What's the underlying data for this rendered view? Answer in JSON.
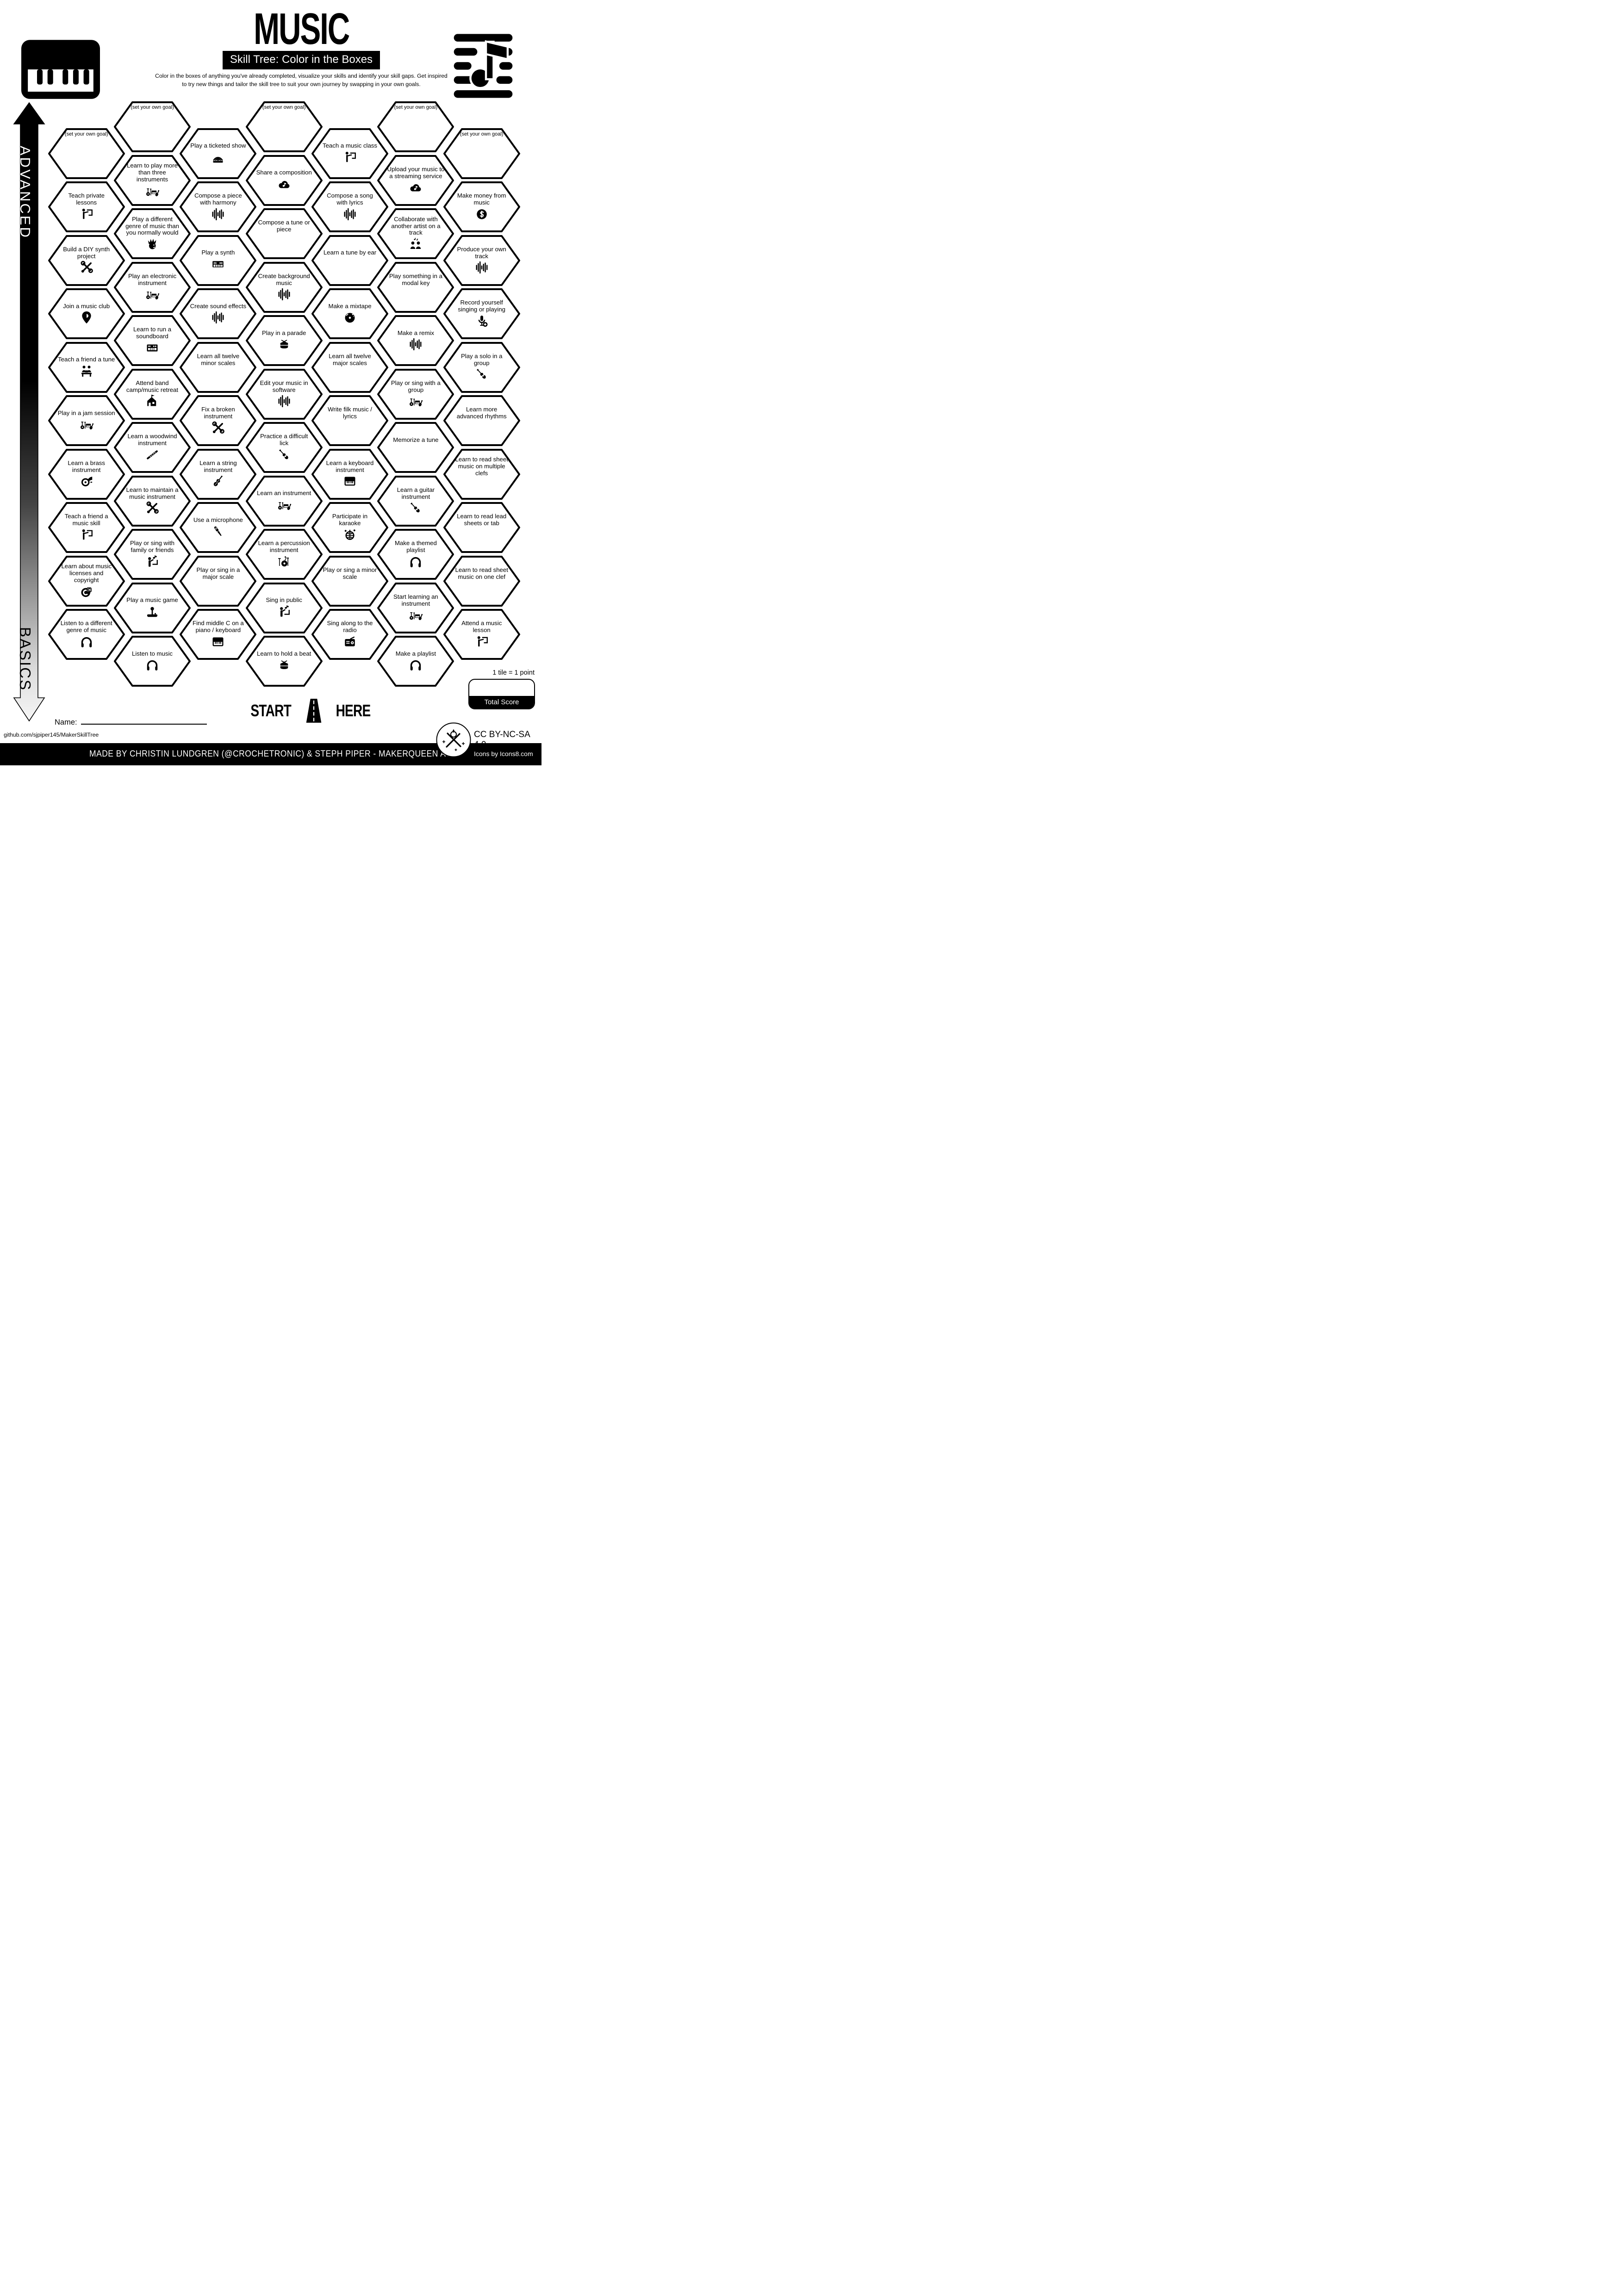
{
  "header": {
    "title": "MUSIC",
    "subtitle": "Skill Tree: Color in the Boxes",
    "description_line1": "Color in the boxes of anything you've already completed, visualize your skills and identify your skill gaps.  Get inspired",
    "description_line2": "to try new things and tailor the skill tree to suit your own journey by swapping in your own goals.",
    "left_icon": "piano-keyboard-icon",
    "right_icon": "sheet-music-icon"
  },
  "axis": {
    "top_label": "ADVANCED",
    "bottom_label": "BASICS"
  },
  "colors": {
    "ink": "#000000",
    "paper": "#ffffff"
  },
  "hexes": [
    {
      "col": 1,
      "row": 0,
      "label": "(set your own goal)",
      "icon": null
    },
    {
      "col": 1,
      "row": 1,
      "label": "Teach private lessons",
      "icon": "teacher"
    },
    {
      "col": 1,
      "row": 2,
      "label": "Build a DIY synth project",
      "icon": "tools"
    },
    {
      "col": 1,
      "row": 3,
      "label": "Join a music club",
      "icon": "pin"
    },
    {
      "col": 1,
      "row": 4,
      "label": "Teach a friend a tune",
      "icon": "duo"
    },
    {
      "col": 1,
      "row": 5,
      "label": "Play in a jam session",
      "icon": "band"
    },
    {
      "col": 1,
      "row": 6,
      "label": "Learn a brass instrument",
      "icon": "brass"
    },
    {
      "col": 1,
      "row": 7,
      "label": "Teach a friend a music skill",
      "icon": "teacher"
    },
    {
      "col": 1,
      "row": 8,
      "label": "Learn about music licenses and copyright",
      "icon": "copyright"
    },
    {
      "col": 1,
      "row": 9,
      "label": "Listen to a different genre of music",
      "icon": "headphones"
    },
    {
      "col": 2,
      "row": 0,
      "label": "(set your own goal)",
      "icon": null
    },
    {
      "col": 2,
      "row": 1,
      "label": "Learn to play more than three instruments",
      "icon": "band"
    },
    {
      "col": 2,
      "row": 2,
      "label": "Play a different genre of music than you normally would",
      "icon": "punk"
    },
    {
      "col": 2,
      "row": 3,
      "label": "Play an electronic instrument",
      "icon": "band"
    },
    {
      "col": 2,
      "row": 4,
      "label": "Learn to run a soundboard",
      "icon": "soundboard"
    },
    {
      "col": 2,
      "row": 5,
      "label": "Attend band camp/music retreat",
      "icon": "house"
    },
    {
      "col": 2,
      "row": 6,
      "label": "Learn a woodwind instrument",
      "icon": "flute"
    },
    {
      "col": 2,
      "row": 7,
      "label": "Learn to maintain a music instrument",
      "icon": "tools"
    },
    {
      "col": 2,
      "row": 8,
      "label": "Play or sing with family or friends",
      "icon": "singer"
    },
    {
      "col": 2,
      "row": 9,
      "label": "Play a music game",
      "icon": "joystick"
    },
    {
      "col": 2,
      "row": 10,
      "label": "Listen to music",
      "icon": "headphones"
    },
    {
      "col": 3,
      "row": 0,
      "label": "Play a ticketed show",
      "icon": "stage"
    },
    {
      "col": 3,
      "row": 1,
      "label": "Compose a piece with harmony",
      "icon": "wave"
    },
    {
      "col": 3,
      "row": 2,
      "label": "Play a synth",
      "icon": "synth"
    },
    {
      "col": 3,
      "row": 3,
      "label": "Create sound effects",
      "icon": "wave"
    },
    {
      "col": 3,
      "row": 4,
      "label": "Learn all twelve minor scales",
      "icon": "sheet"
    },
    {
      "col": 3,
      "row": 5,
      "label": "Fix a broken instrument",
      "icon": "tools"
    },
    {
      "col": 3,
      "row": 6,
      "label": "Learn a string instrument",
      "icon": "violin"
    },
    {
      "col": 3,
      "row": 7,
      "label": "Use a microphone",
      "icon": "mic"
    },
    {
      "col": 3,
      "row": 8,
      "label": "Play or sing in a major scale",
      "icon": "sheet"
    },
    {
      "col": 3,
      "row": 9,
      "label": "Find middle C on a piano / keyboard",
      "icon": "keys"
    },
    {
      "col": 4,
      "row": 0,
      "label": "(set your own goal)",
      "icon": null
    },
    {
      "col": 4,
      "row": 1,
      "label": "Share a composition",
      "icon": "cloudnote"
    },
    {
      "col": 4,
      "row": 2,
      "label": "Compose a tune or piece",
      "icon": "sheet"
    },
    {
      "col": 4,
      "row": 3,
      "label": "Create background music",
      "icon": "wave"
    },
    {
      "col": 4,
      "row": 4,
      "label": "Play in a parade",
      "icon": "drum"
    },
    {
      "col": 4,
      "row": 5,
      "label": "Edit your music in software",
      "icon": "wave"
    },
    {
      "col": 4,
      "row": 6,
      "label": "Practice a difficult lick",
      "icon": "guitar"
    },
    {
      "col": 4,
      "row": 7,
      "label": "Learn an instrument",
      "icon": "band"
    },
    {
      "col": 4,
      "row": 8,
      "label": "Learn a percussion instrument",
      "icon": "drumkit"
    },
    {
      "col": 4,
      "row": 9,
      "label": "Sing in public",
      "icon": "singer"
    },
    {
      "col": 4,
      "row": 10,
      "label": "Learn to hold a beat",
      "icon": "drum"
    },
    {
      "col": 5,
      "row": 0,
      "label": "Teach a music class",
      "icon": "teacher"
    },
    {
      "col": 5,
      "row": 1,
      "label": "Compose a song with lyrics",
      "icon": "wave"
    },
    {
      "col": 5,
      "row": 2,
      "label": "Learn a tune by ear",
      "icon": "sheet"
    },
    {
      "col": 5,
      "row": 3,
      "label": "Make a mixtape",
      "icon": "vinyl"
    },
    {
      "col": 5,
      "row": 4,
      "label": "Learn all twelve major scales",
      "icon": "sheet"
    },
    {
      "col": 5,
      "row": 5,
      "label": "Write filk music / lyrics",
      "icon": "sheet"
    },
    {
      "col": 5,
      "row": 6,
      "label": "Learn a keyboard instrument",
      "icon": "keys"
    },
    {
      "col": 5,
      "row": 7,
      "label": "Participate in karaoke",
      "icon": "disco"
    },
    {
      "col": 5,
      "row": 8,
      "label": "Play or sing a minor scale",
      "icon": "sheet"
    },
    {
      "col": 5,
      "row": 9,
      "label": "Sing along to the radio",
      "icon": "radio"
    },
    {
      "col": 6,
      "row": 0,
      "label": "(set your own goal)",
      "icon": null
    },
    {
      "col": 6,
      "row": 1,
      "label": "Upload your music to a streaming service",
      "icon": "cloudnote"
    },
    {
      "col": 6,
      "row": 2,
      "label": "Collaborate with another artist on a track",
      "icon": "people"
    },
    {
      "col": 6,
      "row": 3,
      "label": "Play something in a modal key",
      "icon": "sheet"
    },
    {
      "col": 6,
      "row": 4,
      "label": "Make a remix",
      "icon": "wave"
    },
    {
      "col": 6,
      "row": 5,
      "label": "Play or sing with a group",
      "icon": "band"
    },
    {
      "col": 6,
      "row": 6,
      "label": "Memorize a tune",
      "icon": "sheet"
    },
    {
      "col": 6,
      "row": 7,
      "label": "Learn a guitar instrument",
      "icon": "guitar"
    },
    {
      "col": 6,
      "row": 8,
      "label": "Make a themed playlist",
      "icon": "headphones"
    },
    {
      "col": 6,
      "row": 9,
      "label": "Start learning an instrument",
      "icon": "band"
    },
    {
      "col": 6,
      "row": 10,
      "label": "Make a playlist",
      "icon": "headphones"
    },
    {
      "col": 7,
      "row": 0,
      "label": "(set your own goal)",
      "icon": null
    },
    {
      "col": 7,
      "row": 1,
      "label": "Make money from music",
      "icon": "dollar"
    },
    {
      "col": 7,
      "row": 2,
      "label": "Produce your own track",
      "icon": "wave"
    },
    {
      "col": 7,
      "row": 3,
      "label": "Record yourself singing or playing",
      "icon": "micplus"
    },
    {
      "col": 7,
      "row": 4,
      "label": "Play a solo in a group",
      "icon": "guitar"
    },
    {
      "col": 7,
      "row": 5,
      "label": "Learn more advanced rhythms",
      "icon": "sheet"
    },
    {
      "col": 7,
      "row": 6,
      "label": "Learn to read sheet music on multiple clefs",
      "icon": "sheet"
    },
    {
      "col": 7,
      "row": 7,
      "label": "Learn to read lead sheets or tab",
      "icon": "sheet"
    },
    {
      "col": 7,
      "row": 8,
      "label": "Learn to read sheet music on one clef",
      "icon": "sheet"
    },
    {
      "col": 7,
      "row": 9,
      "label": "Attend a music lesson",
      "icon": "teacher"
    }
  ],
  "footer": {
    "start_label": "START",
    "here_label": "HERE",
    "name_label": "Name:",
    "github": "github.com/sjpiper145/MakerSkillTree",
    "tile_point": "1 tile = 1 point",
    "total_score": "Total Score",
    "license": "CC BY-NC-SA 4.0",
    "icons_credit": "Icons by Icons8.com",
    "credit_bar": "MADE BY CHRISTIN LUNDGREN (@CROCHETRONIC) & STEPH PIPER  -  MAKERQUEEN AU"
  }
}
